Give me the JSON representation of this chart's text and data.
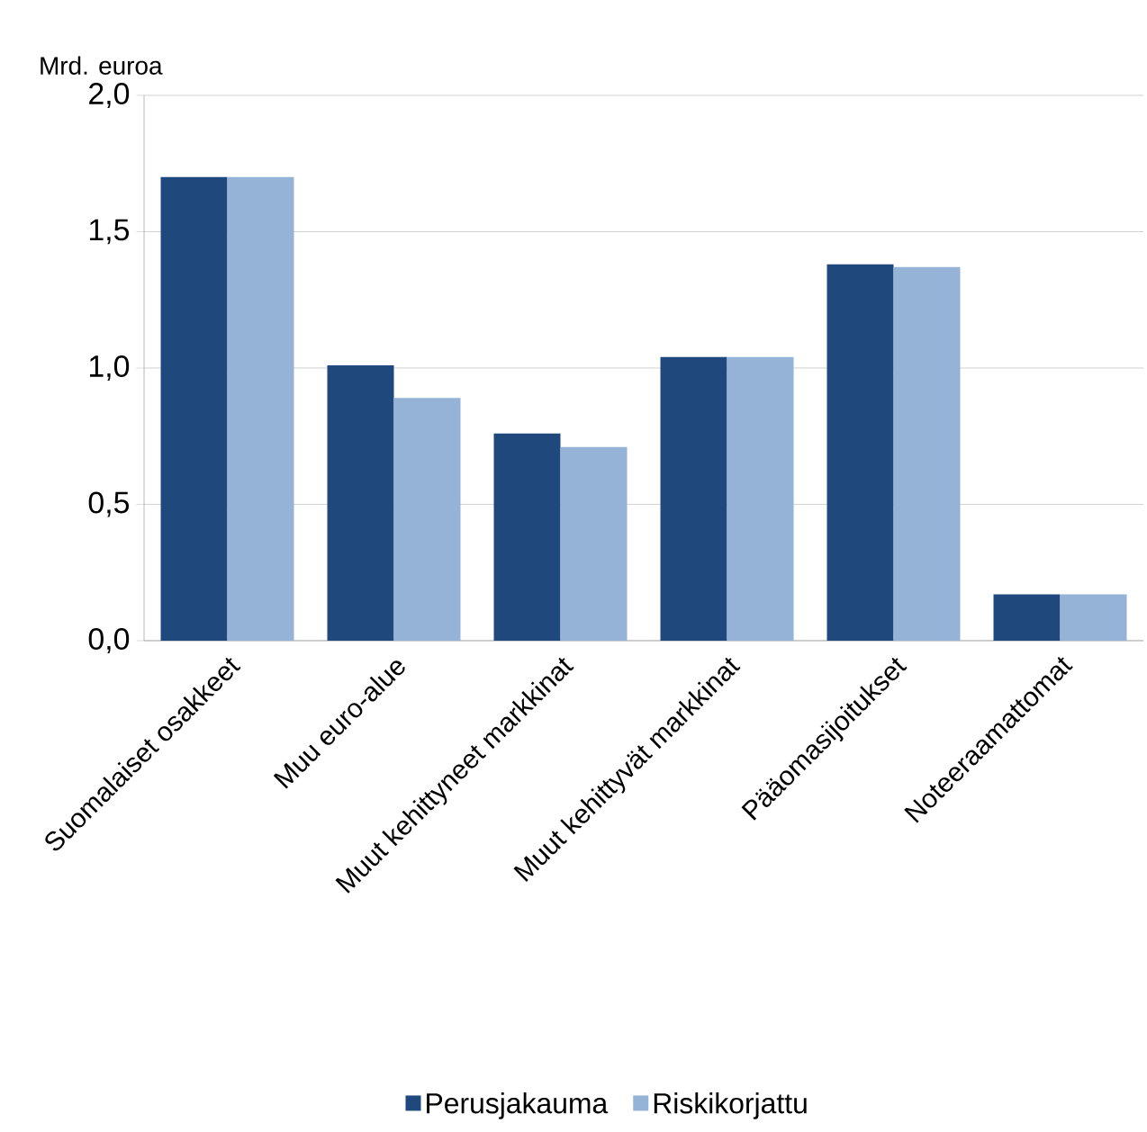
{
  "chart_data": {
    "type": "bar",
    "ylabel": "Mrd. euroa",
    "categories": [
      "Suomalaiset osakkeet",
      "Muu euro-alue",
      "Muut kehittyneet markkinat",
      "Muut kehittyvät markkinat",
      "Pääomasijoitukset",
      "Noteeraamattomat"
    ],
    "series": [
      {
        "name": "Perusjakauma",
        "color": "#1f497d",
        "values": [
          1.7,
          1.01,
          0.76,
          1.04,
          1.38,
          0.17
        ]
      },
      {
        "name": "Riskikorjattu",
        "color": "#95b3d7",
        "values": [
          1.7,
          0.89,
          0.71,
          1.04,
          1.37,
          0.17
        ]
      }
    ],
    "ylim": [
      0,
      2
    ],
    "yticks": [
      {
        "value": 0,
        "label": "0,0"
      },
      {
        "value": 0.5,
        "label": "0,5"
      },
      {
        "value": 1,
        "label": "1,0"
      },
      {
        "value": 1.5,
        "label": "1,5"
      },
      {
        "value": 2,
        "label": "2,0"
      }
    ],
    "grid": "y",
    "legend": "bottom"
  }
}
